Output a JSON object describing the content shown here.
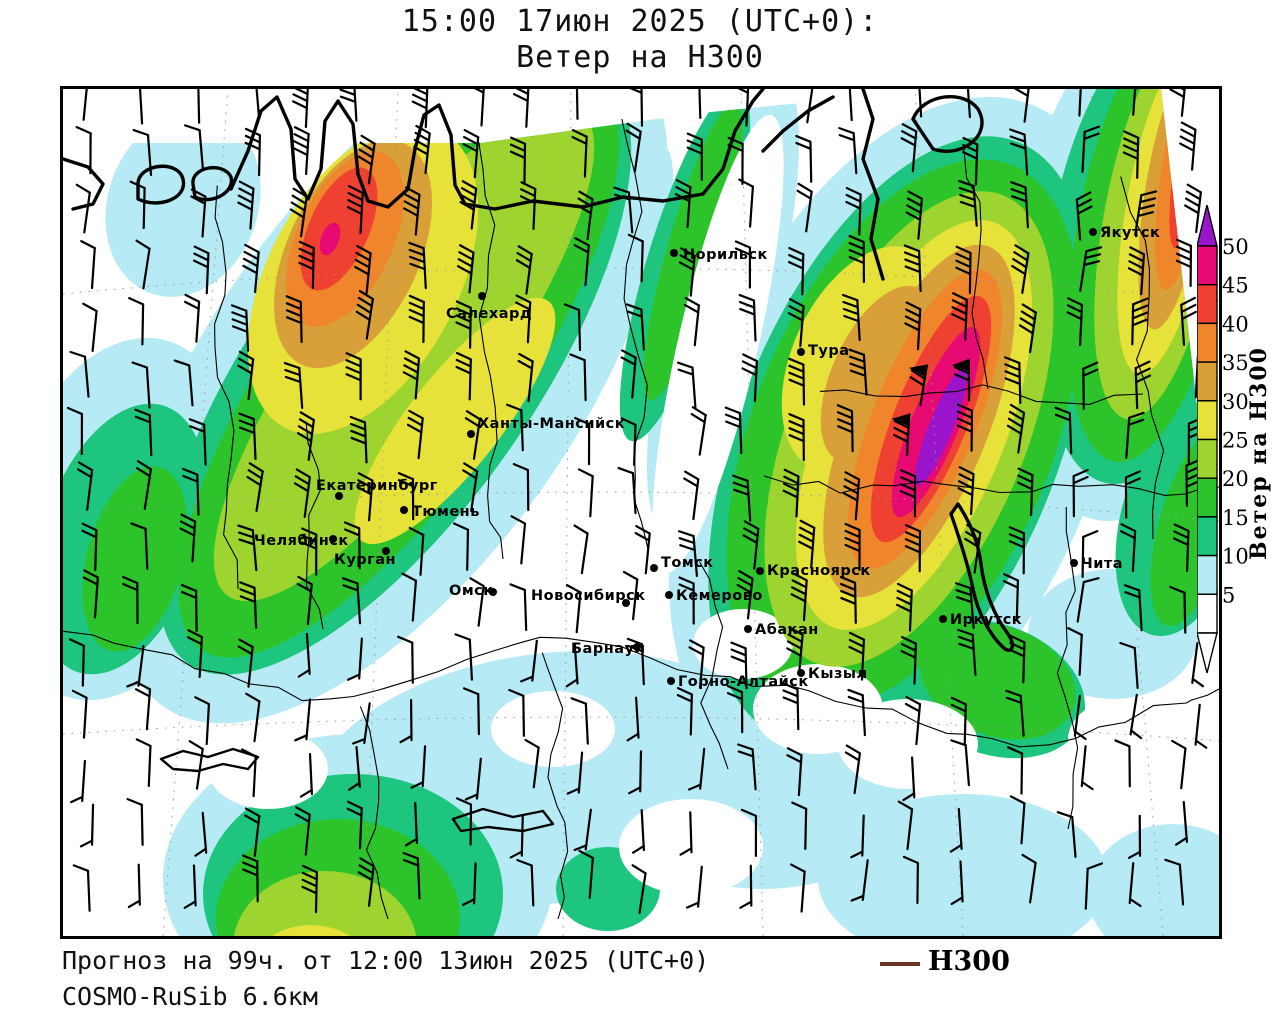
{
  "title": {
    "line1": "15:00 17июн 2025 (UTC+0):",
    "line2": "Ветер на H300"
  },
  "footer": {
    "line1": "Прогноз на 99ч. от 12:00 13июн 2025 (UTC+0)",
    "line2": "COSMO-RuSib 6.6км",
    "legend_label": "H300",
    "legend_line_color": "#6b3226"
  },
  "colorbar": {
    "axis_label": "Ветер на H300",
    "ticks": [
      5,
      10,
      15,
      20,
      25,
      30,
      35,
      40,
      45,
      50
    ]
  },
  "palette": {
    "under": "#ffffff",
    "5": "#b6eaf4",
    "10": "#1ec57e",
    "15": "#2cc42a",
    "20": "#9ed42f",
    "25": "#e6e23a",
    "30": "#d9a03a",
    "35": "#f0862c",
    "40": "#ef4132",
    "45": "#e60a72",
    "50": "#9a14cc"
  },
  "map": {
    "cities": [
      {
        "name": "Норильск",
        "dot": [
          611,
          164
        ],
        "label": [
          620,
          170
        ]
      },
      {
        "name": "Салехард",
        "dot": [
          419,
          207
        ],
        "label": [
          383,
          229
        ]
      },
      {
        "name": "Ханты-Мансийск",
        "dot": [
          408,
          345
        ],
        "label": [
          415,
          339
        ]
      },
      {
        "name": "Екатеринбург",
        "dot": [
          276,
          407
        ],
        "label": [
          253,
          401
        ]
      },
      {
        "name": "Тюмень",
        "dot": [
          341,
          421
        ],
        "label": [
          349,
          427
        ]
      },
      {
        "name": "Челябинск",
        "dot": [
          270,
          450
        ],
        "label": [
          191,
          456
        ]
      },
      {
        "name": "Курган",
        "dot": [
          323,
          462
        ],
        "label": [
          271,
          475
        ]
      },
      {
        "name": "Омск",
        "dot": [
          430,
          503
        ],
        "label": [
          386,
          506
        ]
      },
      {
        "name": "Томск",
        "dot": [
          591,
          479
        ],
        "label": [
          598,
          478
        ]
      },
      {
        "name": "Новосибирск",
        "dot": [
          563,
          514
        ],
        "label": [
          468,
          511
        ]
      },
      {
        "name": "Кемерово",
        "dot": [
          606,
          506
        ],
        "label": [
          613,
          511
        ]
      },
      {
        "name": "Красноярск",
        "dot": [
          697,
          482
        ],
        "label": [
          704,
          486
        ]
      },
      {
        "name": "Абакан",
        "dot": [
          685,
          540
        ],
        "label": [
          692,
          545
        ]
      },
      {
        "name": "Барнаул",
        "dot": [
          574,
          558
        ],
        "label": [
          508,
          564
        ]
      },
      {
        "name": "Горно-Алтайск",
        "dot": [
          608,
          592
        ],
        "label": [
          615,
          597
        ]
      },
      {
        "name": "Кызыл",
        "dot": [
          738,
          584
        ],
        "label": [
          745,
          589
        ]
      },
      {
        "name": "Иркутск",
        "dot": [
          880,
          530
        ],
        "label": [
          887,
          535
        ]
      },
      {
        "name": "Чита",
        "dot": [
          1011,
          474
        ],
        "label": [
          1018,
          479
        ]
      },
      {
        "name": "Якутск",
        "dot": [
          1030,
          143
        ],
        "label": [
          1037,
          148
        ]
      },
      {
        "name": "Тура",
        "dot": [
          738,
          263
        ],
        "label": [
          745,
          266
        ]
      }
    ]
  }
}
